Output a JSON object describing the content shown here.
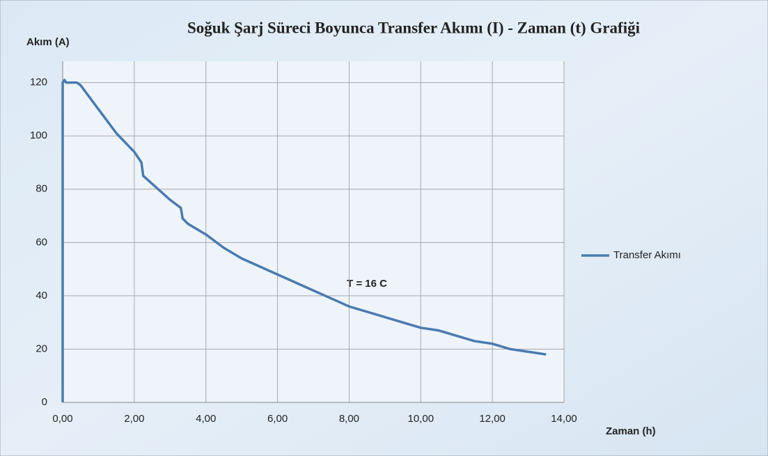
{
  "chart_data": {
    "type": "line",
    "title": "Soğuk Şarj Süreci Boyunca Transfer Akımı (I) - Zaman (t) Grafiği",
    "y_label": "Akım (A)",
    "x_label": "Zaman (h)",
    "annotation": "T = 16 C",
    "x": [
      0,
      0,
      0.05,
      0.1,
      0.4,
      0.5,
      1,
      1.5,
      2,
      2.15,
      2.2,
      2.25,
      2.5,
      3,
      3.3,
      3.35,
      3.5,
      4,
      4.5,
      5,
      5.5,
      6,
      6.5,
      7,
      7.5,
      8,
      8.5,
      9,
      9.5,
      10,
      10.5,
      11,
      11.5,
      12,
      12.5,
      13,
      13.5
    ],
    "series": [
      {
        "name": "Transfer Akımı",
        "color": "#4a7ab0",
        "values": [
          0,
          120,
          121,
          120,
          120,
          119,
          110,
          101,
          94,
          91,
          90,
          85,
          82,
          76,
          73,
          69,
          67,
          63,
          58,
          54,
          51,
          48,
          45,
          42,
          39,
          36,
          34,
          32,
          30,
          28,
          27,
          25,
          23,
          22,
          20,
          19,
          18
        ]
      }
    ],
    "xlim": [
      0,
      14
    ],
    "xticks": [
      {
        "value": 0,
        "label": "0,00"
      },
      {
        "value": 2,
        "label": "2,00"
      },
      {
        "value": 4,
        "label": "4,00"
      },
      {
        "value": 6,
        "label": "6,00"
      },
      {
        "value": 8,
        "label": "8,00"
      },
      {
        "value": 10,
        "label": "10,00"
      },
      {
        "value": 12,
        "label": "12,00"
      },
      {
        "value": 14,
        "label": "14,00"
      }
    ],
    "ylim": [
      0,
      128
    ],
    "yticks": [
      0,
      20,
      40,
      60,
      80,
      100,
      120
    ],
    "grid": true,
    "legend": "right"
  }
}
